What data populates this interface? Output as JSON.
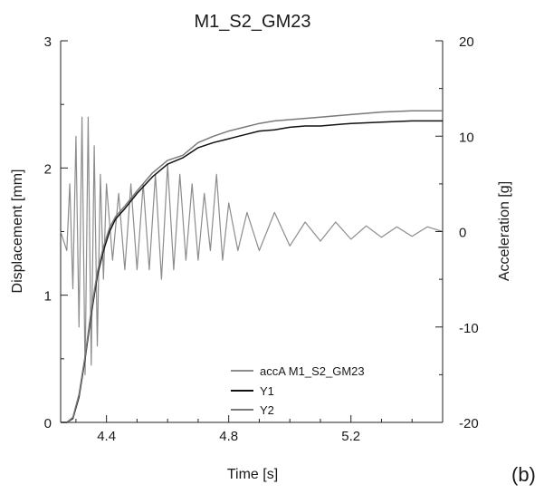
{
  "chart_data": {
    "type": "line",
    "title": "M1_S2_GM23",
    "xlabel": "Time [s]",
    "ylabel_left": "Displacement [mm]",
    "ylabel_right": "Acceleration [g]",
    "panel_label": "(b)",
    "xlim": [
      4.25,
      5.5
    ],
    "ylim_left": [
      0,
      3
    ],
    "ylim_right": [
      -20,
      20
    ],
    "x_ticks": [
      4.4,
      4.8,
      5.2
    ],
    "x_tick_labels": [
      "4.4",
      "4.8",
      "5.2"
    ],
    "y_left_ticks": [
      0,
      1,
      2,
      3
    ],
    "y_left_tick_labels": [
      "0",
      "1",
      "2",
      "3"
    ],
    "y_right_ticks": [
      -20,
      -10,
      0,
      10,
      20
    ],
    "y_right_tick_labels": [
      "-20",
      "-10",
      "0",
      "10",
      "20"
    ],
    "grid": false,
    "legend_position": "bottom-center",
    "series": [
      {
        "name": "accA M1_S2_GM23",
        "axis": "right",
        "color": "#8c8c8c",
        "x": [
          4.25,
          4.27,
          4.28,
          4.29,
          4.3,
          4.31,
          4.32,
          4.33,
          4.34,
          4.35,
          4.36,
          4.37,
          4.38,
          4.39,
          4.4,
          4.42,
          4.44,
          4.46,
          4.48,
          4.5,
          4.52,
          4.54,
          4.56,
          4.58,
          4.6,
          4.62,
          4.64,
          4.66,
          4.68,
          4.7,
          4.72,
          4.74,
          4.76,
          4.78,
          4.8,
          4.83,
          4.86,
          4.9,
          4.95,
          5.0,
          5.05,
          5.1,
          5.15,
          5.2,
          5.25,
          5.3,
          5.35,
          5.4,
          5.45,
          5.5
        ],
        "values": [
          0,
          -2,
          5,
          -6,
          10,
          -10,
          12,
          -15,
          12,
          -14,
          9,
          -12,
          6,
          -5,
          5,
          -3,
          4,
          -4,
          5,
          -4,
          5,
          -4,
          6,
          -5,
          7,
          -4,
          6,
          -3,
          5,
          -3,
          4,
          -2,
          6,
          -3,
          3,
          -2,
          2,
          -2,
          2,
          -1.5,
          1,
          -1,
          1,
          -0.8,
          0.6,
          -0.6,
          0.5,
          -0.5,
          0.5,
          0
        ]
      },
      {
        "name": "Y1",
        "axis": "left",
        "color": "#111111",
        "x": [
          4.25,
          4.27,
          4.29,
          4.31,
          4.33,
          4.35,
          4.37,
          4.39,
          4.41,
          4.43,
          4.46,
          4.5,
          4.55,
          4.6,
          4.65,
          4.7,
          4.75,
          4.8,
          4.85,
          4.9,
          4.95,
          5.0,
          5.05,
          5.1,
          5.2,
          5.3,
          5.4,
          5.5
        ],
        "values": [
          0,
          0.0,
          0.03,
          0.2,
          0.5,
          0.85,
          1.15,
          1.35,
          1.5,
          1.6,
          1.68,
          1.8,
          1.93,
          2.03,
          2.08,
          2.16,
          2.2,
          2.23,
          2.26,
          2.29,
          2.3,
          2.32,
          2.33,
          2.33,
          2.35,
          2.36,
          2.37,
          2.37
        ]
      },
      {
        "name": "Y2",
        "axis": "left",
        "color": "#7a7a7a",
        "x": [
          4.25,
          4.27,
          4.29,
          4.31,
          4.33,
          4.35,
          4.37,
          4.39,
          4.41,
          4.43,
          4.46,
          4.5,
          4.55,
          4.6,
          4.65,
          4.7,
          4.75,
          4.8,
          4.85,
          4.9,
          4.95,
          5.0,
          5.05,
          5.1,
          5.2,
          5.3,
          5.4,
          5.5
        ],
        "values": [
          0,
          0.0,
          0.04,
          0.22,
          0.52,
          0.88,
          1.18,
          1.38,
          1.53,
          1.62,
          1.7,
          1.82,
          1.96,
          2.06,
          2.1,
          2.2,
          2.25,
          2.29,
          2.32,
          2.35,
          2.37,
          2.38,
          2.39,
          2.4,
          2.42,
          2.44,
          2.45,
          2.45
        ]
      }
    ]
  }
}
